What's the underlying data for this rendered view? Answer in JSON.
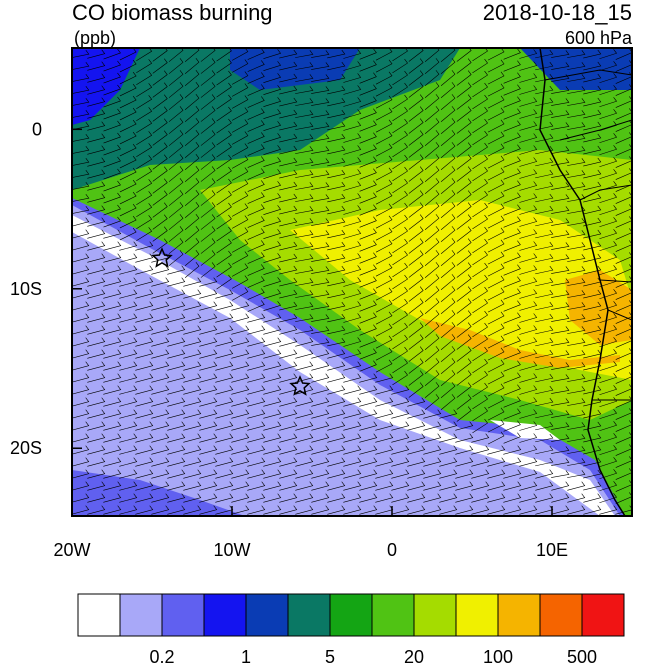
{
  "map": {
    "title": "CO biomass burning",
    "units": "(ppb)",
    "time": "2018-10-18_15",
    "level": "600 hPa",
    "xlim": [
      -20,
      15
    ],
    "ylim": [
      -24.25,
      5.1
    ],
    "xticks": [
      {
        "value": -20,
        "label": "20W"
      },
      {
        "value": -10,
        "label": "10W"
      },
      {
        "value": 0,
        "label": "0"
      },
      {
        "value": 10,
        "label": "10E"
      }
    ],
    "yticks": [
      {
        "value": 0,
        "label": "0"
      },
      {
        "value": -10,
        "label": "10S"
      },
      {
        "value": -20,
        "label": "20S"
      }
    ],
    "colorbar": {
      "colors": [
        "#ffffff",
        "#a8a8f8",
        "#6060f0",
        "#1414f0",
        "#0a3cb4",
        "#0a7864",
        "#14a514",
        "#50c314",
        "#a5dc00",
        "#f0f000",
        "#f5b400",
        "#f56400",
        "#f01414"
      ],
      "labels": [
        "0.2",
        "1",
        "5",
        "20",
        "100",
        "500"
      ]
    }
  }
}
